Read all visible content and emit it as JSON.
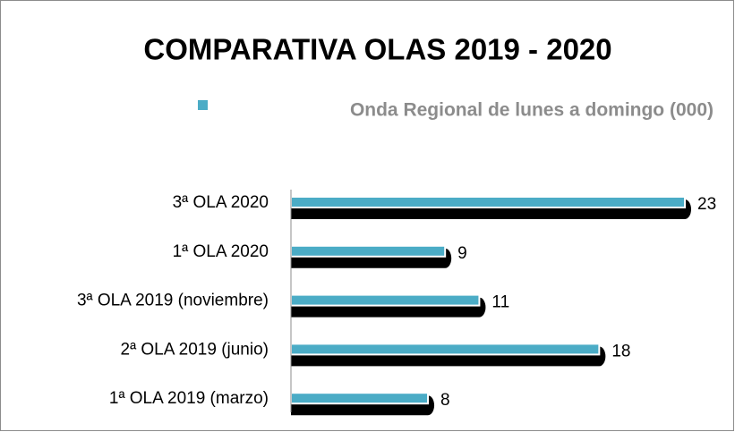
{
  "chart_data": {
    "type": "bar",
    "orientation": "horizontal",
    "title": "COMPARATIVA OLAS 2019 - 2020",
    "categories": [
      "3ª OLA 2020",
      "1ª OLA 2020",
      "3ª OLA 2019 (noviembre)",
      "2ª OLA 2019 (junio)",
      "1ª OLA 2019 (marzo)"
    ],
    "series": [
      {
        "name": "Onda Regional de lunes a domingo (000)",
        "color": "#4bacc6",
        "values": [
          23,
          9,
          11,
          18,
          8
        ]
      }
    ],
    "legend": "top"
  }
}
